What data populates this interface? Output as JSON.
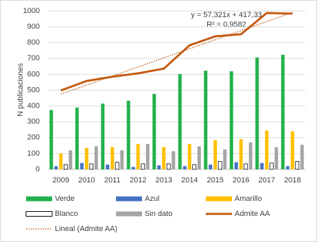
{
  "chart_data": {
    "type": "bar",
    "y_label": "N publicaciones",
    "annotations": [
      "y = 57,321x + 417,33",
      "R² = 0,9582"
    ],
    "categories": [
      "2009",
      "2010",
      "2011",
      "2012",
      "2013",
      "2014",
      "2015",
      "2016",
      "2017",
      "2018"
    ],
    "series": [
      {
        "name": "Verde",
        "type": "bar",
        "color": "#22b14c",
        "values": [
          375,
          390,
          415,
          433,
          476,
          602,
          623,
          619,
          706,
          723
        ]
      },
      {
        "name": "Azul",
        "type": "bar",
        "color": "#4472c4",
        "values": [
          20,
          40,
          30,
          15,
          25,
          20,
          30,
          45,
          40,
          20
        ]
      },
      {
        "name": "Amarillo",
        "type": "bar",
        "color": "#ffc000",
        "values": [
          100,
          135,
          140,
          160,
          140,
          160,
          185,
          190,
          245,
          240
        ]
      },
      {
        "name": "Blanco",
        "type": "bar",
        "color": "#ffffff",
        "stroke": "#000000",
        "values": [
          30,
          35,
          45,
          35,
          35,
          30,
          50,
          35,
          40,
          50
        ]
      },
      {
        "name": "Sin dato",
        "type": "bar",
        "color": "#a5a5a5",
        "values": [
          120,
          145,
          120,
          160,
          115,
          145,
          125,
          170,
          140,
          155
        ]
      },
      {
        "name": "Admite AA",
        "type": "line",
        "color": "#c55a11",
        "values": [
          498,
          558,
          585,
          606,
          636,
          783,
          840,
          853,
          987,
          983
        ]
      },
      {
        "name": "Lineal (Admite AA)",
        "type": "dotted",
        "color": "#c55a11",
        "values": [
          474.7,
          532.0,
          589.3,
          646.6,
          703.9,
          761.3,
          818.6,
          875.9,
          933.2,
          990.5
        ]
      }
    ],
    "ylim": [
      0,
      1000
    ],
    "yticks": [
      0,
      100,
      200,
      300,
      400,
      500,
      600,
      700,
      800,
      900,
      1000
    ],
    "grid": true
  }
}
